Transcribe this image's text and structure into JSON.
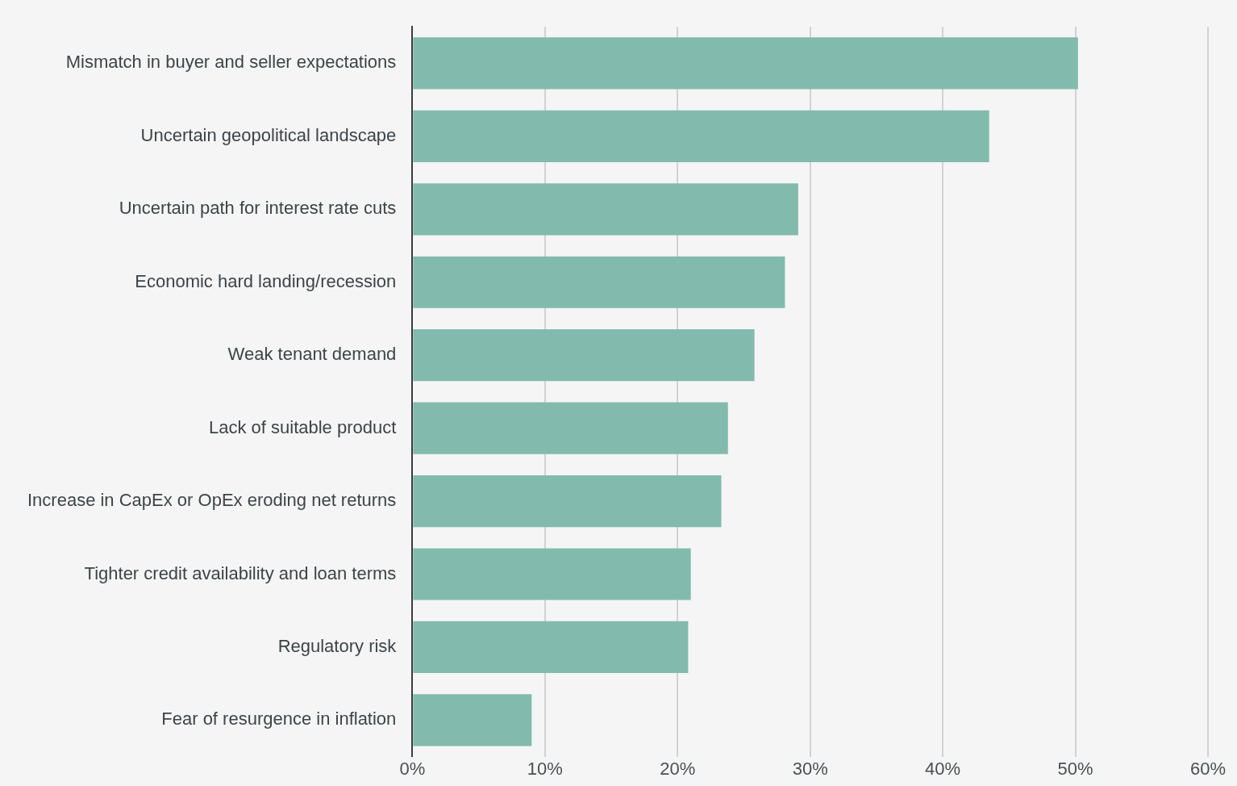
{
  "chart_data": {
    "type": "bar",
    "orientation": "horizontal",
    "categories": [
      "Mismatch in buyer and seller expectations",
      "Uncertain geopolitical landscape",
      "Uncertain path for interest rate cuts",
      "Economic hard landing/recession",
      "Weak tenant demand",
      "Lack of suitable product",
      "Increase in CapEx or OpEx eroding net returns",
      "Tighter credit availability and loan terms",
      "Regulatory risk",
      "Fear of resurgence in inflation"
    ],
    "values": [
      50.2,
      43.5,
      29.1,
      28.1,
      25.8,
      23.8,
      23.3,
      21.0,
      20.8,
      9.0
    ],
    "color": "#82bbad",
    "xlim": [
      0,
      60
    ],
    "xticks": [
      {
        "value": 0,
        "label": "0%"
      },
      {
        "value": 10,
        "label": "10%"
      },
      {
        "value": 20,
        "label": "20%"
      },
      {
        "value": 30,
        "label": "30%"
      },
      {
        "value": 40,
        "label": "40%"
      },
      {
        "value": 50,
        "label": "50%"
      },
      {
        "value": 60,
        "label": "60%"
      }
    ],
    "grid": "x",
    "legend": false
  }
}
